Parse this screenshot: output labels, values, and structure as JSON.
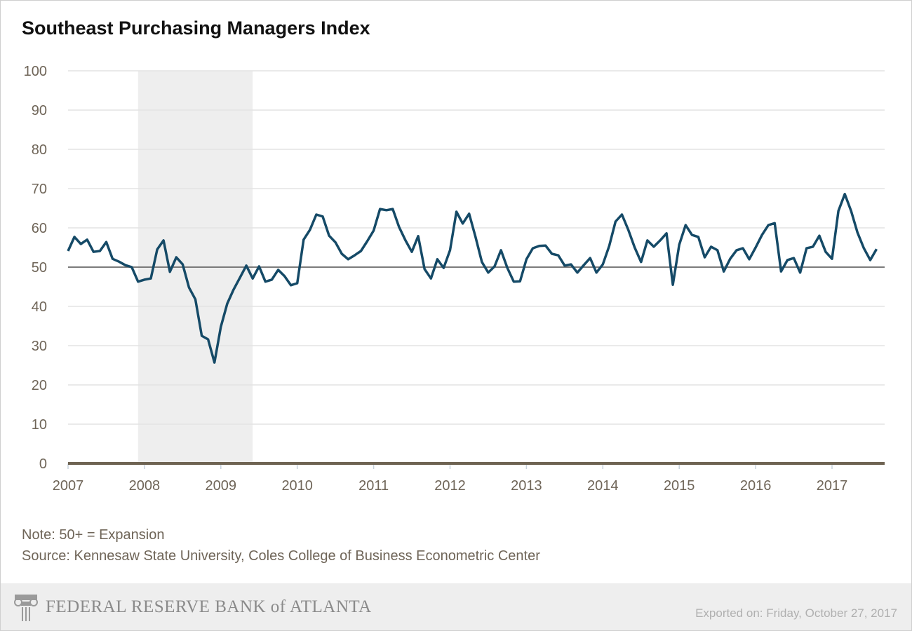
{
  "chart_data": {
    "type": "line",
    "title": "Southeast Purchasing Managers Index",
    "xlabel": "",
    "ylabel": "",
    "ylim": [
      0,
      100
    ],
    "yticks": [
      0,
      10,
      20,
      30,
      40,
      50,
      60,
      70,
      80,
      90,
      100
    ],
    "xticks": [
      "2007",
      "2008",
      "2009",
      "2010",
      "2011",
      "2012",
      "2013",
      "2014",
      "2015",
      "2016",
      "2017"
    ],
    "x_start": "2007-01",
    "frequency": "monthly",
    "grid": true,
    "reference_line": 50,
    "shaded_periods": [
      {
        "start": "2007-12",
        "end": "2009-06"
      }
    ],
    "line_color": "#154a67",
    "values": [
      54.1,
      57.7,
      55.9,
      57.0,
      53.9,
      54.1,
      56.4,
      52.1,
      51.4,
      50.5,
      50.0,
      46.3,
      46.8,
      47.1,
      54.5,
      56.8,
      48.8,
      52.5,
      50.7,
      44.8,
      41.8,
      32.5,
      31.6,
      25.7,
      34.8,
      40.7,
      44.3,
      47.3,
      50.4,
      47.1,
      50.2,
      46.3,
      46.8,
      49.3,
      47.7,
      45.4,
      45.9,
      57.0,
      59.5,
      63.4,
      62.9,
      58.0,
      56.3,
      53.4,
      52.0,
      53.0,
      54.1,
      56.6,
      59.3,
      64.8,
      64.5,
      64.8,
      60.2,
      56.8,
      53.9,
      57.9,
      49.5,
      47.1,
      52.0,
      49.8,
      54.3,
      64.1,
      61.1,
      63.6,
      57.7,
      51.3,
      48.6,
      50.2,
      54.3,
      49.8,
      46.3,
      46.4,
      52.0,
      54.8,
      55.4,
      55.5,
      53.4,
      53.0,
      50.4,
      50.7,
      48.6,
      50.5,
      52.3,
      48.6,
      50.7,
      55.4,
      61.6,
      63.4,
      59.5,
      55.0,
      51.3,
      56.8,
      55.2,
      56.8,
      58.6,
      45.5,
      55.7,
      60.7,
      58.2,
      57.7,
      52.5,
      55.2,
      54.3,
      48.9,
      52.1,
      54.3,
      54.8,
      52.0,
      55.0,
      58.2,
      60.7,
      61.2,
      48.9,
      51.8,
      52.3,
      48.6,
      54.8,
      55.2,
      58.0,
      53.9,
      52.1,
      64.3,
      68.6,
      64.3,
      58.8,
      54.8,
      51.8,
      54.6
    ]
  },
  "notes": {
    "note": "Note: 50+ = Expansion",
    "source": "Source: Kennesaw State University, Coles College of Business Econometric Center"
  },
  "footer": {
    "logo_text": "FEDERAL RESERVE BANK of ATLANTA",
    "exported": "Exported on: Friday, October 27, 2017"
  }
}
